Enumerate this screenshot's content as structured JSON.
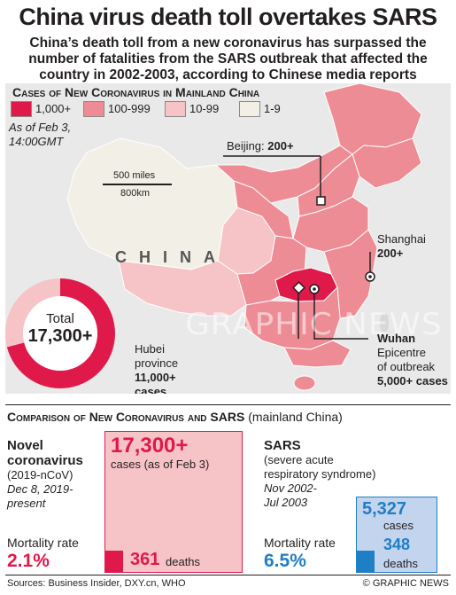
{
  "title": "China virus death toll overtakes SARS",
  "subtitle": "China’s death toll from a new coronavirus has surpassed the number of fatalities from the SARS outbreak that affected the country in 2002-2003, according to Chinese media reports",
  "map": {
    "header": "Cases of New Coronavirus in Mainland China",
    "legend": [
      {
        "label": "1,000+",
        "color": "#e0194b"
      },
      {
        "label": "100-999",
        "color": "#ee8c95"
      },
      {
        "label": "10-99",
        "color": "#f6c3c6"
      },
      {
        "label": "1-9",
        "color": "#f2efe6"
      }
    ],
    "as_of_line1": "As of Feb 3,",
    "as_of_line2": "14:00GMT",
    "scale_miles": "500 miles",
    "scale_km": "800km",
    "country": "CHINA",
    "watermark": "GRAPHIC NEWS",
    "beijing_name": "Beijing:",
    "beijing_cases": "200+",
    "shanghai_name": "Shanghai",
    "shanghai_cases": "200+",
    "wuhan_name": "Wuhan",
    "wuhan_line2": "Epicentre",
    "wuhan_line3": "of outbreak",
    "wuhan_cases": "5,000+",
    "wuhan_cases_suffix": "cases",
    "hubei_line1": "Hubei",
    "hubei_line2": "province",
    "hubei_cases": "11,000+",
    "hubei_cases_suffix": "cases",
    "total_label": "Total",
    "total_value": "17,300+"
  },
  "comparison": {
    "header_main": "Comparison of New Coronavirus and SARS",
    "header_note": "(mainland China)",
    "ncov_name1": "Novel",
    "ncov_name2": "coronavirus",
    "ncov_sub": "(2019-nCoV)",
    "ncov_dates1": "Dec 8, 2019-",
    "ncov_dates2": "present",
    "ncov_cases": "17,300+",
    "ncov_cases_label": "cases (as of Feb 3)",
    "ncov_deaths": "361",
    "ncov_deaths_label": "deaths",
    "sars_name": "SARS",
    "sars_sub1": "(severe acute",
    "sars_sub2": "respiratory syndrome)",
    "sars_dates1": "Nov 2002-",
    "sars_dates2": "Jul 2003",
    "sars_cases": "5,327",
    "sars_cases_label": "cases",
    "sars_deaths": "348",
    "sars_deaths_label": "deaths",
    "mortality_label": "Mortality rate",
    "ncov_rate": "2.1%",
    "sars_rate": "6.5%"
  },
  "footer": {
    "sources": "Sources: Business Insider, DXY.cn, WHO",
    "credit": "© GRAPHIC NEWS"
  },
  "colors": {
    "ncov_accent": "#e0194b",
    "ncov_fill": "#f6c3c6",
    "sars_accent": "#1f7fc4",
    "sars_fill": "#c3d4ee"
  }
}
